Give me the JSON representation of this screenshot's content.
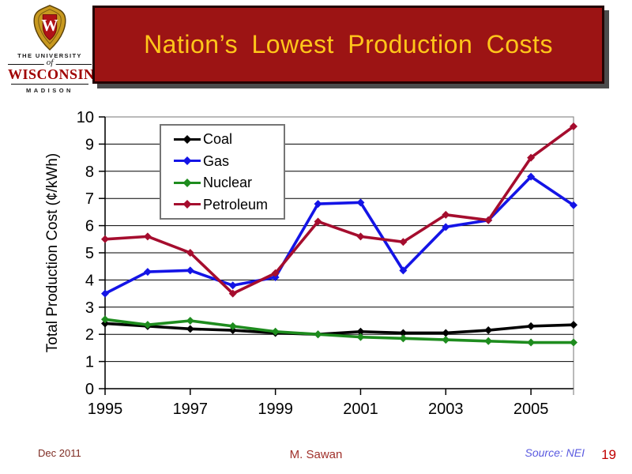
{
  "slide": {
    "logo": {
      "crest_letter": "W",
      "line1": "THE UNIVERSITY",
      "line2": "of",
      "line3": "WISCONSIN",
      "line4": "MADISON"
    },
    "header": {
      "title": "Nation’s Lowest Production Costs"
    },
    "footer": {
      "date": "Dec 2011",
      "author": "M. Sawan",
      "source": "Source: NEI",
      "page_number": "19"
    }
  },
  "colors": {
    "banner_background": "#9C1414",
    "banner_border": "#230303",
    "banner_title": "#FFC61A",
    "logo_red": "#A00000",
    "footer_date": "#7E2B22",
    "footer_author": "#A0302A",
    "footer_source": "#5A5AE0",
    "footer_page": "#C00000"
  },
  "chart_data": {
    "type": "line",
    "title": "",
    "xlabel": "",
    "ylabel": "Total Production Cost (¢/kWh)",
    "x": [
      1995,
      1996,
      1997,
      1998,
      1999,
      2000,
      2001,
      2002,
      2003,
      2004,
      2005,
      2006
    ],
    "x_tick_labels": [
      "1995",
      "1997",
      "1999",
      "2001",
      "2003",
      "2005"
    ],
    "ylim": [
      0,
      10
    ],
    "y_ticks": [
      0,
      1,
      2,
      3,
      4,
      5,
      6,
      7,
      8,
      9,
      10
    ],
    "grid": "horizontal",
    "legend_position": "top-left-inside",
    "series": [
      {
        "name": "Coal",
        "color": "#000000",
        "values": [
          2.4,
          2.3,
          2.2,
          2.15,
          2.05,
          2.0,
          2.1,
          2.05,
          2.05,
          2.15,
          2.3,
          2.35
        ]
      },
      {
        "name": "Gas",
        "color": "#1414E6",
        "values": [
          3.5,
          4.3,
          4.35,
          3.8,
          4.1,
          6.8,
          6.85,
          4.35,
          5.95,
          6.2,
          7.8,
          6.75
        ]
      },
      {
        "name": "Nuclear",
        "color": "#1E8C1E",
        "values": [
          2.55,
          2.35,
          2.5,
          2.3,
          2.1,
          2.0,
          1.9,
          1.85,
          1.8,
          1.75,
          1.7,
          1.7
        ]
      },
      {
        "name": "Petroleum",
        "color": "#A50D2E",
        "values": [
          5.5,
          5.6,
          5.0,
          3.5,
          4.25,
          6.15,
          5.6,
          5.4,
          6.4,
          6.2,
          8.5,
          9.65
        ]
      }
    ]
  }
}
